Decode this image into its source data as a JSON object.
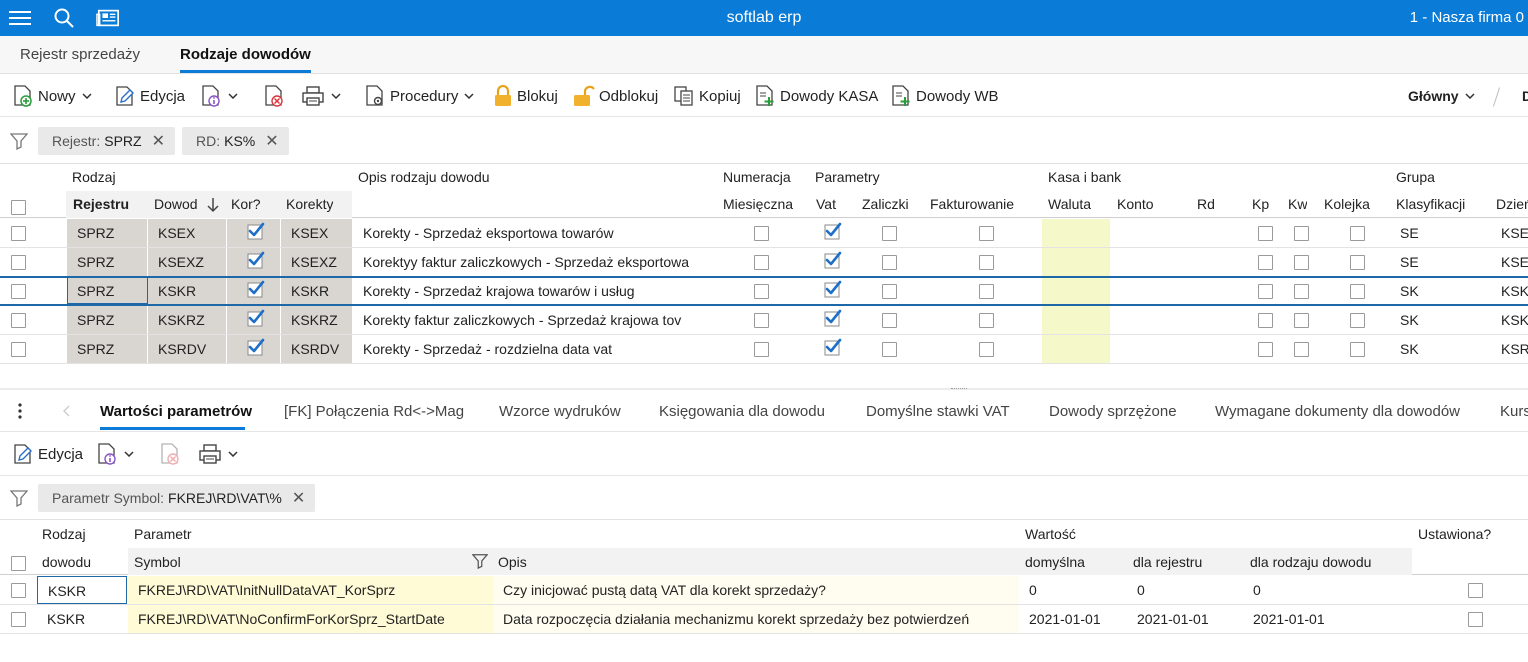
{
  "app": {
    "title": "softlab erp",
    "company": "1 - Nasza firma 0"
  },
  "titlebar_icons": [
    "menu-icon",
    "search-icon",
    "news-icon"
  ],
  "tabs": [
    {
      "label": "Rejestr sprzedaży",
      "active": false
    },
    {
      "label": "Rodzaje dowodów",
      "active": true
    }
  ],
  "toolbar": {
    "new": "Nowy",
    "edit": "Edycja",
    "procedures": "Procedury",
    "lock": "Blokuj",
    "unlock": "Odblokuj",
    "copy": "Kopiuj",
    "cash_docs": "Dowody KASA",
    "wb_docs": "Dowody WB",
    "view": "Główny",
    "cut_label": "D"
  },
  "filters": [
    {
      "key": "Rejestr:",
      "value": "SPRZ"
    },
    {
      "key": "RD:",
      "value": "KS%"
    }
  ],
  "grid": {
    "groups": {
      "rodzaj": "Rodzaj",
      "opis": "Opis rodzaju dowodu",
      "numeracja": "Numeracja",
      "parametry": "Parametry",
      "kasa": "Kasa i bank",
      "grupa": "Grupa"
    },
    "columns": {
      "rejestru": "Rejestru",
      "dowod": "Dowod",
      "kor": "Kor?",
      "korekty": "Korekty",
      "miesieczna": "Miesięczna",
      "vat": "Vat",
      "zaliczki": "Zaliczki",
      "fakturowanie": "Fakturowanie",
      "waluta": "Waluta",
      "konto": "Konto",
      "rd": "Rd",
      "kp": "Kp",
      "kw": "Kw",
      "kolejka": "Kolejka",
      "klasyfikacji": "Klasyfikacji",
      "dzien": "Dzień"
    },
    "rows": [
      {
        "rejestr": "SPRZ",
        "dowod": "KSEX",
        "kor": true,
        "korekty": "KSEX",
        "opis": "Korekty - Sprzedaż eksportowa towarów",
        "miesieczna": false,
        "vat": true,
        "zaliczki": false,
        "fakturowanie": false,
        "waluta": "",
        "konto": "",
        "rd": "",
        "kp": false,
        "kw": false,
        "kolejka": false,
        "klasyfikacji": "SE",
        "dzien": "KSE"
      },
      {
        "rejestr": "SPRZ",
        "dowod": "KSEXZ",
        "kor": true,
        "korekty": "KSEXZ",
        "opis": "Korektyy faktur zaliczkowych - Sprzedaż eksportowa",
        "miesieczna": false,
        "vat": true,
        "zaliczki": false,
        "fakturowanie": false,
        "waluta": "",
        "konto": "",
        "rd": "",
        "kp": false,
        "kw": false,
        "kolejka": false,
        "klasyfikacji": "SE",
        "dzien": "KSE"
      },
      {
        "rejestr": "SPRZ",
        "dowod": "KSKR",
        "kor": true,
        "korekty": "KSKR",
        "opis": "Korekty - Sprzedaż krajowa towarów i usług",
        "miesieczna": false,
        "vat": true,
        "zaliczki": false,
        "fakturowanie": false,
        "waluta": "",
        "konto": "",
        "rd": "",
        "kp": false,
        "kw": false,
        "kolejka": false,
        "klasyfikacji": "SK",
        "dzien": "KSK"
      },
      {
        "rejestr": "SPRZ",
        "dowod": "KSKRZ",
        "kor": true,
        "korekty": "KSKRZ",
        "opis": "Korekty faktur zaliczkowych - Sprzedaż krajowa tov",
        "miesieczna": false,
        "vat": true,
        "zaliczki": false,
        "fakturowanie": false,
        "waluta": "",
        "konto": "",
        "rd": "",
        "kp": false,
        "kw": false,
        "kolejka": false,
        "klasyfikacji": "SK",
        "dzien": "KSK"
      },
      {
        "rejestr": "SPRZ",
        "dowod": "KSRDV",
        "kor": true,
        "korekty": "KSRDV",
        "opis": "Korekty - Sprzedaż - rozdzielna data vat",
        "miesieczna": false,
        "vat": true,
        "zaliczki": false,
        "fakturowanie": false,
        "waluta": "",
        "konto": "",
        "rd": "",
        "kp": false,
        "kw": false,
        "kolejka": false,
        "klasyfikacji": "SK",
        "dzien": "KSR"
      }
    ]
  },
  "detail_tabs": [
    {
      "label": "Wartości parametrów",
      "active": true
    },
    {
      "label": "[FK] Połączenia Rd<->Mag",
      "active": false
    },
    {
      "label": "Wzorce wydruków",
      "active": false
    },
    {
      "label": "Księgowania dla dowodu",
      "active": false
    },
    {
      "label": "Domyślne stawki VAT",
      "active": false
    },
    {
      "label": "Dowody sprzężone",
      "active": false
    },
    {
      "label": "Wymagane dokumenty dla dowodów",
      "active": false
    },
    {
      "label": "Kurs",
      "active": false
    }
  ],
  "detail_toolbar": {
    "edit": "Edycja"
  },
  "detail_filter": {
    "key": "Parametr Symbol:",
    "value": "FKREJ\\RD\\VAT\\%"
  },
  "detail_grid": {
    "groups": {
      "rodzaj": "Rodzaj",
      "parametr": "Parametr",
      "wartosc": "Wartość",
      "ustawiona": "Ustawiona?"
    },
    "columns": {
      "dowodu": "dowodu",
      "symbol": "Symbol",
      "opis": "Opis",
      "domyslna": "domyślna",
      "dla_rejestru": "dla rejestru",
      "dla_rodzaju": "dla rodzaju dowodu"
    },
    "rows": [
      {
        "rodzaj": "KSKR",
        "symbol": "FKREJ\\RD\\VAT\\InitNullDataVAT_KorSprz",
        "opis": "Czy inicjować pustą datą VAT dla korekt sprzedaży?",
        "domyslna": "0",
        "dla_rejestru": "0",
        "dla_rodzaju": "0",
        "ustawiona": false
      },
      {
        "rodzaj": "KSKR",
        "symbol": "FKREJ\\RD\\VAT\\NoConfirmForKorSprz_StartDate",
        "opis": "Data rozpoczęcia działania mechanizmu korekt sprzedaży bez potwierdzeń",
        "domyslna": "2021-01-01",
        "dla_rejestru": "2021-01-01",
        "dla_rodzaju": "2021-01-01",
        "ustawiona": false
      }
    ]
  },
  "colors": {
    "accent": "#0a7bd6",
    "key_cell": "#d9d5d0",
    "waluta_cell": "#f5f8c8",
    "symbol_cell": "#fffbd6",
    "check": "#1e6fc8"
  }
}
